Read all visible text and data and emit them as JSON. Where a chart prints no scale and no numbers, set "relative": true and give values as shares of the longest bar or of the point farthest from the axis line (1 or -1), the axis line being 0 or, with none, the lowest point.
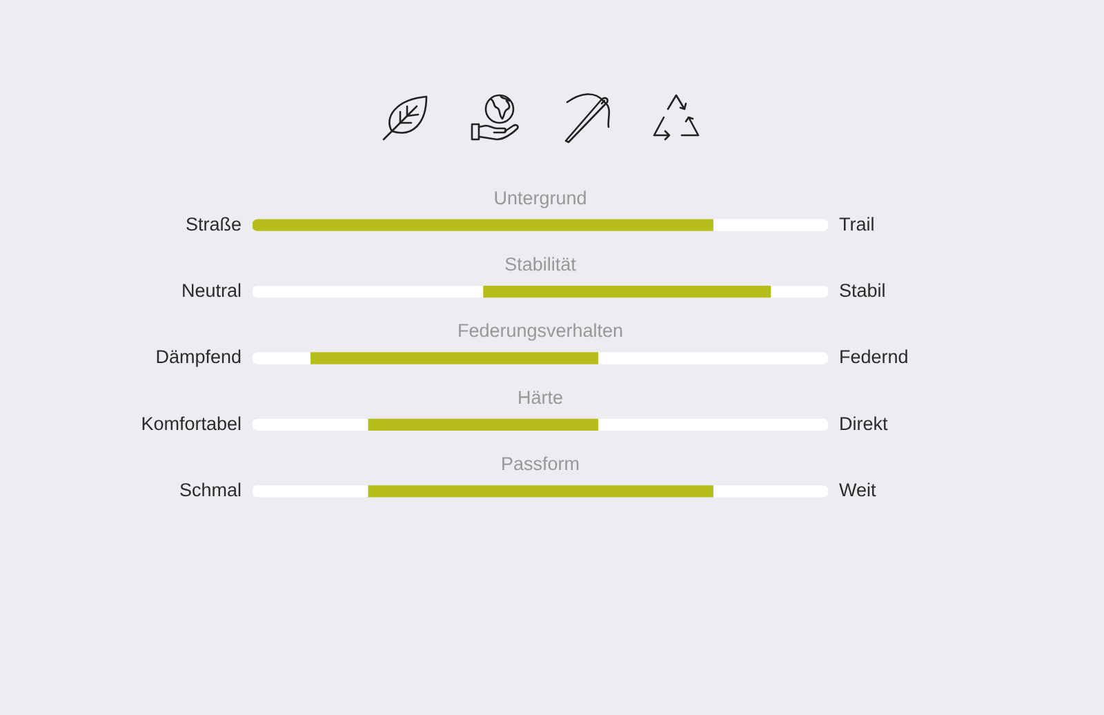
{
  "chart_data": {
    "type": "bar",
    "orientation": "horizontal",
    "stacked": true,
    "relative": true,
    "categories": [
      "Untergrund",
      "Stabilität",
      "Federungsverhalten",
      "Härte",
      "Passform"
    ],
    "series": [
      {
        "color": "#ffffff",
        "values": [
          null,
          0.4,
          0.1,
          0.2,
          0.2
        ]
      },
      {
        "color": "#b7bd1b",
        "values": [
          0.8,
          0.5,
          0.5,
          0.4,
          0.6
        ]
      },
      {
        "color": "#ffffff",
        "values": [
          0.2,
          0.1,
          0.4,
          0.4,
          0.2
        ]
      }
    ],
    "annotations": [
      "Straße",
      "Trail",
      "Neutral",
      "Stabil",
      "Dämpfend",
      "Federnd",
      "Komfortabel",
      "Direkt",
      "Schmal",
      "Weit"
    ]
  }
}
